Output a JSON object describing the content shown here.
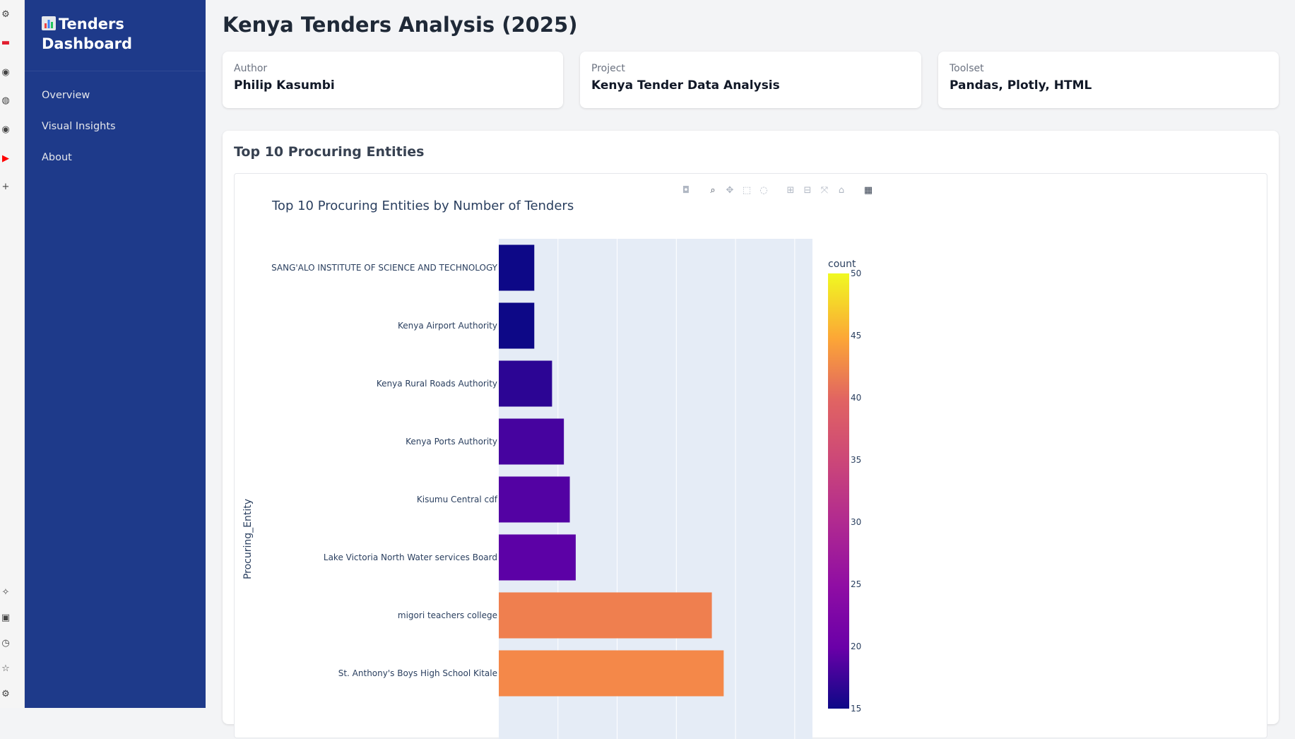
{
  "browser_strip": {
    "icons": [
      "openai-icon",
      "task-icon",
      "github-icon",
      "globe-icon",
      "github-icon",
      "youtube-icon",
      "plus-icon",
      "sparkle-icon",
      "save-icon",
      "history-icon",
      "star-icon",
      "settings-icon"
    ]
  },
  "sidebar": {
    "brand": "Tenders Dashboard",
    "items": [
      {
        "label": "Overview"
      },
      {
        "label": "Visual Insights"
      },
      {
        "label": "About"
      }
    ]
  },
  "main": {
    "title": "Kenya Tenders Analysis (2025)",
    "cards": [
      {
        "label": "Author",
        "value": "Philip Kasumbi"
      },
      {
        "label": "Project",
        "value": "Kenya Tender Data Analysis"
      },
      {
        "label": "Toolset",
        "value": "Pandas, Plotly, HTML"
      }
    ],
    "section_title": "Top 10 Procuring Entities"
  },
  "modebar": [
    "camera-icon",
    "zoom-icon",
    "pan-icon",
    "box-select-icon",
    "lasso-icon",
    "zoom-in-icon",
    "zoom-out-icon",
    "autoscale-icon",
    "reset-axes-icon",
    "plotly-logo-icon"
  ],
  "chart_data": {
    "type": "bar",
    "orientation": "horizontal",
    "title": "Top 10 Procuring Entities by Number of Tenders",
    "ylabel": "Procuring_Entity",
    "xlim": [
      0,
      53
    ],
    "categories": [
      "SANG'ALO INSTITUTE OF SCIENCE AND TECHNOLOGY",
      "Kenya Airport Authority",
      "Kenya Rural Roads Authority",
      "Kenya Ports Authority",
      "Kisumu Central cdf",
      "Lake Victoria North Water services Board",
      "migori teachers college",
      "St. Anthony's Boys High School Kitale"
    ],
    "values": [
      6,
      6,
      9,
      11,
      12,
      13,
      36,
      38
    ],
    "colors": [
      "#0d0887",
      "#0d0887",
      "#2c0594",
      "#46039f",
      "#5302a3",
      "#5c01a6",
      "#ef7f4f",
      "#f48849"
    ],
    "colorbar": {
      "title": "count",
      "range": [
        15,
        50
      ],
      "ticks": [
        50,
        45,
        40,
        35,
        30,
        25,
        20,
        15
      ]
    }
  }
}
